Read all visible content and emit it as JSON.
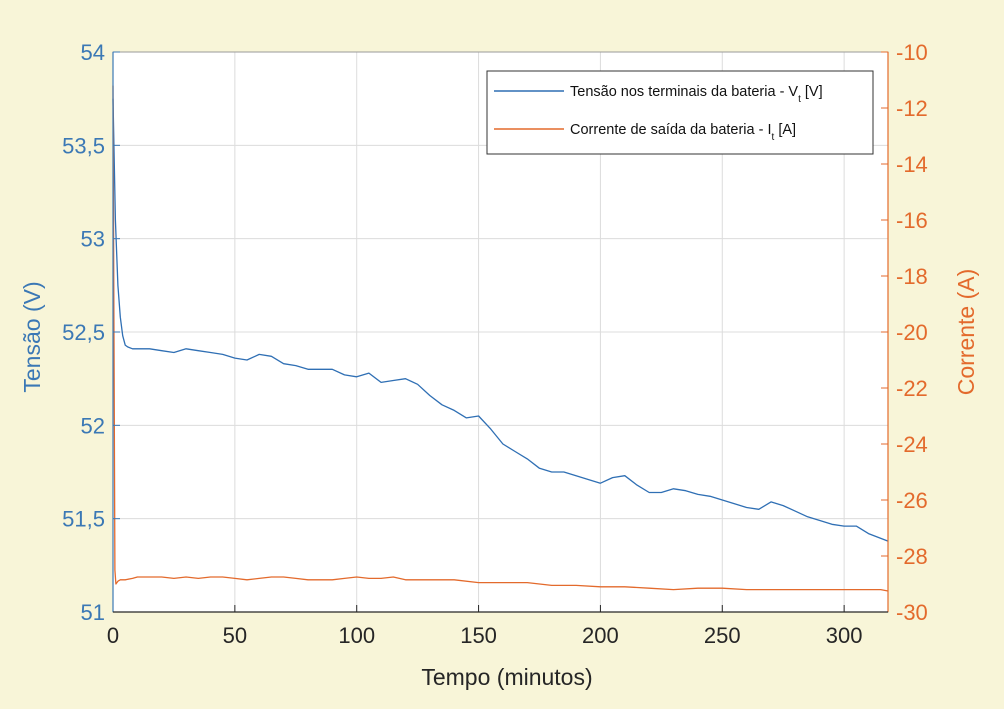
{
  "chart_data": {
    "type": "line",
    "xlabel": "Tempo (minutos)",
    "ylabel_left": "Tensão (V)",
    "ylabel_right": "Corrente (A)",
    "xlim": [
      0,
      318
    ],
    "ylim_left": [
      51,
      54
    ],
    "ylim_right": [
      -30,
      -10
    ],
    "x_ticks": [
      "0",
      "50",
      "100",
      "150",
      "200",
      "250",
      "300"
    ],
    "x_tick_values": [
      0,
      50,
      100,
      150,
      200,
      250,
      300
    ],
    "y_left_ticks": [
      "51",
      "51,5",
      "52",
      "52,5",
      "53",
      "53,5",
      "54"
    ],
    "y_left_tick_values": [
      51,
      51.5,
      52,
      52.5,
      53,
      53.5,
      54
    ],
    "y_right_ticks": [
      "-30",
      "-28",
      "-26",
      "-24",
      "-22",
      "-20",
      "-18",
      "-16",
      "-14",
      "-12",
      "-10"
    ],
    "y_right_tick_values": [
      -30,
      -28,
      -26,
      -24,
      -22,
      -20,
      -18,
      -16,
      -14,
      -12,
      -10
    ],
    "grid": true,
    "legend_position": "top-right",
    "series": [
      {
        "name": "Tensão nos terminais da bateria - V",
        "name_subscript": "t",
        "name_suffix": " [V]",
        "axis": "left",
        "color": "#2f6fb4",
        "x": [
          0,
          1,
          2,
          3,
          4,
          5,
          6,
          8,
          10,
          15,
          20,
          25,
          30,
          35,
          40,
          45,
          50,
          55,
          60,
          65,
          70,
          75,
          80,
          85,
          90,
          95,
          100,
          105,
          110,
          115,
          120,
          125,
          130,
          135,
          140,
          145,
          150,
          155,
          160,
          165,
          170,
          175,
          180,
          185,
          190,
          195,
          200,
          205,
          210,
          215,
          220,
          225,
          230,
          235,
          240,
          245,
          250,
          255,
          260,
          265,
          270,
          275,
          280,
          285,
          290,
          295,
          300,
          305,
          310,
          318
        ],
        "y": [
          53.75,
          53.1,
          52.75,
          52.58,
          52.48,
          52.43,
          52.42,
          52.41,
          52.41,
          52.41,
          52.4,
          52.39,
          52.41,
          52.4,
          52.39,
          52.38,
          52.36,
          52.35,
          52.38,
          52.37,
          52.33,
          52.32,
          52.3,
          52.3,
          52.3,
          52.27,
          52.26,
          52.28,
          52.23,
          52.24,
          52.25,
          52.22,
          52.16,
          52.11,
          52.08,
          52.04,
          52.05,
          51.98,
          51.9,
          51.86,
          51.82,
          51.77,
          51.75,
          51.75,
          51.73,
          51.71,
          51.69,
          51.72,
          51.73,
          51.68,
          51.64,
          51.64,
          51.66,
          51.65,
          51.63,
          51.62,
          51.6,
          51.58,
          51.56,
          51.55,
          51.59,
          51.57,
          51.54,
          51.51,
          51.49,
          51.47,
          51.46,
          51.46,
          51.42,
          51.38
        ]
      },
      {
        "name": "Corrente de saída da bateria - I",
        "name_subscript": "t",
        "name_suffix": " [A]",
        "axis": "right",
        "color": "#e36a2c",
        "x": [
          0,
          0.8,
          1.2,
          2,
          3,
          5,
          8,
          10,
          15,
          20,
          25,
          30,
          35,
          40,
          45,
          50,
          55,
          60,
          65,
          70,
          75,
          80,
          85,
          90,
          95,
          100,
          105,
          110,
          115,
          120,
          125,
          130,
          140,
          150,
          160,
          170,
          180,
          190,
          200,
          210,
          220,
          230,
          240,
          250,
          260,
          270,
          280,
          290,
          300,
          310,
          315,
          318
        ],
        "y": [
          -11.2,
          -28.5,
          -29.0,
          -28.9,
          -28.85,
          -28.85,
          -28.8,
          -28.75,
          -28.75,
          -28.75,
          -28.8,
          -28.75,
          -28.8,
          -28.75,
          -28.75,
          -28.8,
          -28.85,
          -28.8,
          -28.75,
          -28.75,
          -28.8,
          -28.85,
          -28.85,
          -28.85,
          -28.8,
          -28.75,
          -28.8,
          -28.8,
          -28.75,
          -28.85,
          -28.85,
          -28.85,
          -28.85,
          -28.95,
          -28.95,
          -28.95,
          -29.05,
          -29.05,
          -29.1,
          -29.1,
          -29.15,
          -29.2,
          -29.15,
          -29.15,
          -29.2,
          -29.2,
          -29.2,
          -29.2,
          -29.2,
          -29.2,
          -29.2,
          -29.25
        ]
      }
    ]
  }
}
